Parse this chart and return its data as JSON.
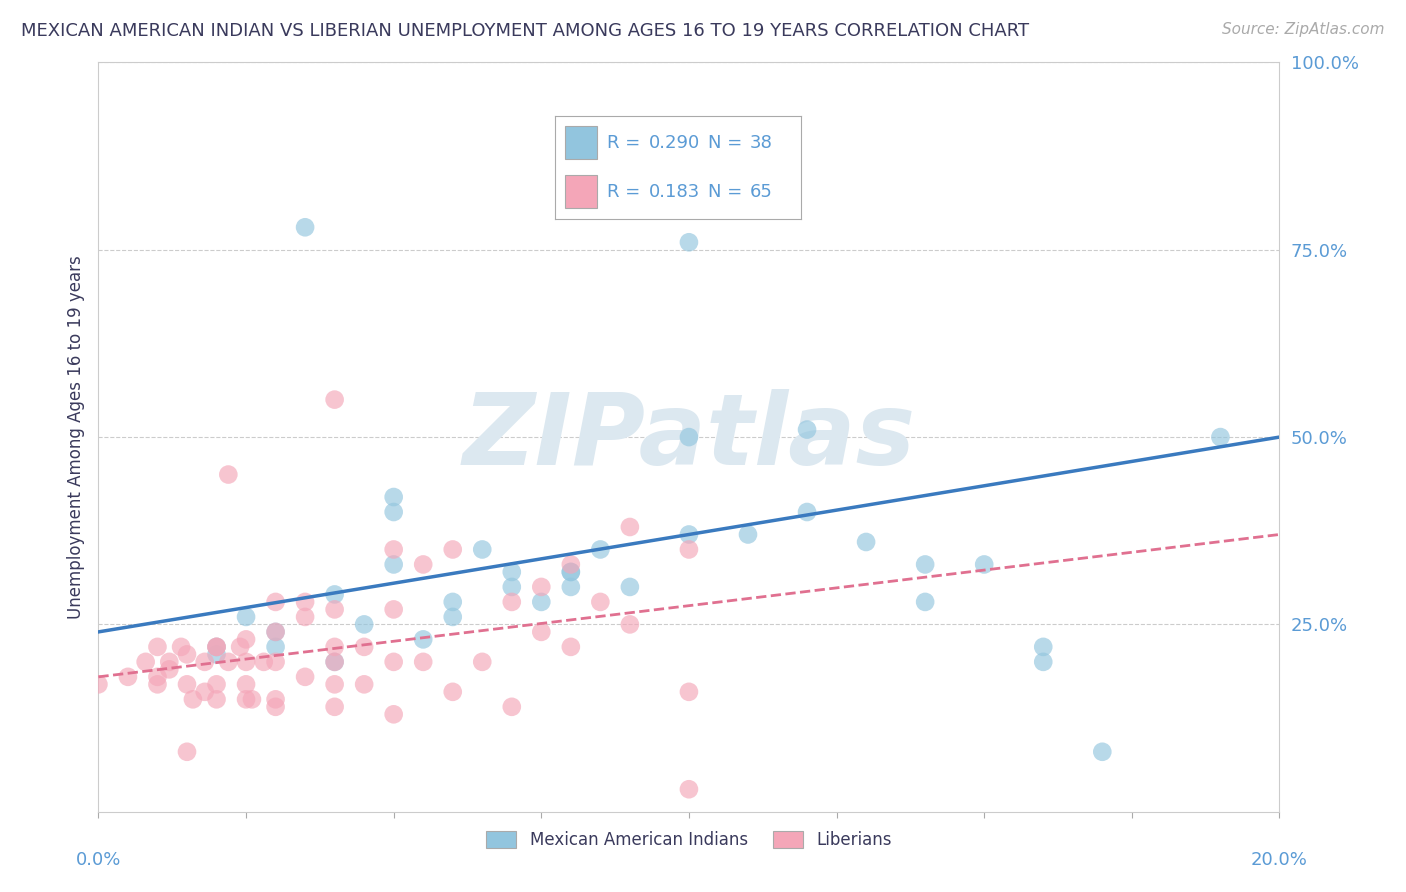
{
  "title": "MEXICAN AMERICAN INDIAN VS LIBERIAN UNEMPLOYMENT AMONG AGES 16 TO 19 YEARS CORRELATION CHART",
  "source": "Source: ZipAtlas.com",
  "ylabel": "Unemployment Among Ages 16 to 19 years",
  "y_ticks": [
    25,
    50,
    75,
    100
  ],
  "y_tick_labels": [
    "25.0%",
    "50.0%",
    "75.0%",
    "100.0%"
  ],
  "x_lim": [
    0,
    0.2
  ],
  "y_lim": [
    0,
    100
  ],
  "legend1_r": "0.290",
  "legend1_n": "38",
  "legend2_r": "0.183",
  "legend2_n": "65",
  "color_blue": "#92c5de",
  "color_pink": "#f4a6b8",
  "color_blue_line": "#3a7abf",
  "color_pink_line": "#e07090",
  "color_title": "#3a3a5c",
  "color_axis_blue": "#5b9bd5",
  "color_watermark": "#dce8f0",
  "blue_x": [
    0.02,
    0.035,
    0.04,
    0.045,
    0.05,
    0.055,
    0.06,
    0.065,
    0.07,
    0.075,
    0.08,
    0.085,
    0.09,
    0.1,
    0.11,
    0.12,
    0.13,
    0.14,
    0.15,
    0.16,
    0.02,
    0.025,
    0.03,
    0.04,
    0.05,
    0.06,
    0.07,
    0.08,
    0.1,
    0.12,
    0.14,
    0.03,
    0.05,
    0.08,
    0.16,
    0.17,
    0.19,
    0.1
  ],
  "blue_y": [
    22,
    78,
    20,
    25,
    33,
    23,
    28,
    35,
    30,
    28,
    32,
    35,
    30,
    37,
    37,
    40,
    36,
    33,
    33,
    20,
    21,
    26,
    24,
    29,
    42,
    26,
    32,
    32,
    76,
    51,
    28,
    22,
    40,
    30,
    22,
    8,
    50,
    50
  ],
  "pink_x": [
    0.005,
    0.008,
    0.01,
    0.01,
    0.012,
    0.015,
    0.015,
    0.018,
    0.02,
    0.02,
    0.022,
    0.025,
    0.025,
    0.025,
    0.028,
    0.03,
    0.03,
    0.03,
    0.035,
    0.035,
    0.04,
    0.04,
    0.04,
    0.04,
    0.045,
    0.05,
    0.05,
    0.055,
    0.06,
    0.065,
    0.07,
    0.075,
    0.075,
    0.08,
    0.085,
    0.09,
    0.1,
    0.02,
    0.025,
    0.03,
    0.035,
    0.04,
    0.045,
    0.05,
    0.055,
    0.01,
    0.012,
    0.014,
    0.016,
    0.018,
    0.02,
    0.022,
    0.024,
    0.026,
    0.03,
    0.04,
    0.05,
    0.06,
    0.07,
    0.08,
    0.09,
    0.1,
    0.0,
    0.015,
    0.1
  ],
  "pink_y": [
    18,
    20,
    17,
    22,
    19,
    17,
    21,
    20,
    17,
    22,
    45,
    20,
    23,
    17,
    20,
    20,
    24,
    28,
    26,
    28,
    27,
    20,
    17,
    55,
    22,
    27,
    35,
    33,
    35,
    20,
    28,
    30,
    24,
    33,
    28,
    38,
    35,
    15,
    15,
    15,
    18,
    22,
    17,
    20,
    20,
    18,
    20,
    22,
    15,
    16,
    22,
    20,
    22,
    15,
    14,
    14,
    13,
    16,
    14,
    22,
    25,
    16,
    17,
    8,
    3
  ],
  "blue_trend_x": [
    0.0,
    0.2
  ],
  "blue_trend_y": [
    24,
    50
  ],
  "pink_trend_x": [
    0.0,
    0.2
  ],
  "pink_trend_y": [
    18,
    37
  ],
  "background_color": "#ffffff",
  "grid_color": "#cccccc"
}
